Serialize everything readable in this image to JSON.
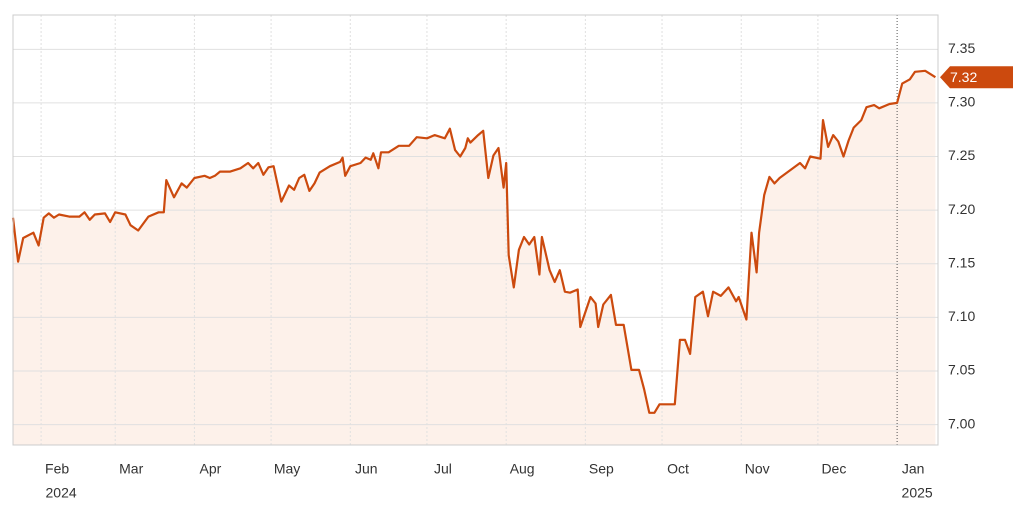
{
  "chart_data": {
    "type": "line",
    "color": "#cc4a0e",
    "fill": "#fdf1ea",
    "x": [
      21,
      23,
      25,
      29,
      31,
      33,
      35,
      37,
      39,
      43,
      47,
      49,
      51,
      53,
      57,
      59,
      61,
      65,
      67,
      70,
      74,
      78,
      80,
      81,
      84,
      87,
      89,
      92,
      96,
      98,
      100,
      102,
      106,
      110,
      113,
      115,
      117,
      119,
      121,
      123,
      126,
      129,
      131,
      133,
      135,
      137,
      139,
      141,
      145,
      149,
      150,
      151,
      153,
      157,
      159,
      161,
      162,
      164,
      165,
      168,
      172,
      176,
      179,
      183,
      186,
      190,
      192,
      194,
      196,
      198,
      199,
      200,
      203,
      205,
      207,
      209,
      211,
      213,
      214,
      215,
      217,
      219,
      221,
      223,
      225,
      227,
      228,
      231,
      233,
      235,
      237,
      239,
      242,
      243,
      247,
      249,
      250,
      252,
      255,
      257,
      260,
      263,
      266,
      268,
      270,
      272,
      274,
      280,
      282,
      284,
      286,
      288,
      291,
      293,
      295,
      298,
      301,
      304,
      305,
      308,
      310,
      312,
      313,
      315,
      317,
      319,
      321,
      325,
      329,
      331,
      333,
      337,
      338,
      340,
      342,
      344,
      346,
      348,
      350,
      353,
      355,
      358,
      360,
      364,
      367,
      369,
      372,
      374,
      378,
      382
    ],
    "values": [
      7.193,
      7.152,
      7.174,
      7.179,
      7.167,
      7.193,
      7.197,
      7.193,
      7.196,
      7.194,
      7.194,
      7.198,
      7.191,
      7.196,
      7.197,
      7.189,
      7.198,
      7.196,
      7.186,
      7.181,
      7.194,
      7.198,
      7.198,
      7.228,
      7.212,
      7.225,
      7.221,
      7.23,
      7.232,
      7.23,
      7.232,
      7.236,
      7.236,
      7.239,
      7.244,
      7.239,
      7.244,
      7.233,
      7.24,
      7.241,
      7.208,
      7.223,
      7.219,
      7.23,
      7.233,
      7.218,
      7.225,
      7.235,
      7.241,
      7.245,
      7.249,
      7.232,
      7.241,
      7.244,
      7.249,
      7.247,
      7.253,
      7.239,
      7.254,
      7.254,
      7.26,
      7.26,
      7.268,
      7.267,
      7.27,
      7.267,
      7.276,
      7.256,
      7.25,
      7.258,
      7.267,
      7.263,
      7.27,
      7.274,
      7.23,
      7.251,
      7.258,
      7.221,
      7.244,
      7.158,
      7.128,
      7.163,
      7.175,
      7.168,
      7.175,
      7.14,
      7.175,
      7.144,
      7.133,
      7.144,
      7.124,
      7.123,
      7.126,
      7.091,
      7.119,
      7.113,
      7.091,
      7.112,
      7.121,
      7.093,
      7.093,
      7.051,
      7.051,
      7.033,
      7.011,
      7.011,
      7.019,
      7.019,
      7.079,
      7.079,
      7.066,
      7.119,
      7.124,
      7.101,
      7.124,
      7.12,
      7.128,
      7.115,
      7.119,
      7.098,
      7.179,
      7.142,
      7.179,
      7.214,
      7.231,
      7.225,
      7.23,
      7.237,
      7.244,
      7.239,
      7.25,
      7.248,
      7.284,
      7.259,
      7.27,
      7.264,
      7.25,
      7.265,
      7.277,
      7.284,
      7.296,
      7.298,
      7.295,
      7.299,
      7.3,
      7.318,
      7.322,
      7.329,
      7.33,
      7.324
    ],
    "last_value_label": "7.32",
    "xlim": [
      21,
      383
    ],
    "xticks": [
      {
        "value": 32,
        "label": "Feb"
      },
      {
        "value": 61,
        "label": "Mar"
      },
      {
        "value": 92,
        "label": "Apr"
      },
      {
        "value": 122,
        "label": "May"
      },
      {
        "value": 153,
        "label": "Jun"
      },
      {
        "value": 183,
        "label": "Jul"
      },
      {
        "value": 214,
        "label": "Aug"
      },
      {
        "value": 245,
        "label": "Sep"
      },
      {
        "value": 275,
        "label": "Oct"
      },
      {
        "value": 306,
        "label": "Nov"
      },
      {
        "value": 336,
        "label": "Dec"
      },
      {
        "value": 367,
        "label": "Jan"
      }
    ],
    "x_year_labels": [
      {
        "value": 32,
        "label": "2024"
      },
      {
        "value": 367,
        "label": "2025"
      }
    ],
    "ylim": [
      6.981,
      7.382
    ],
    "yticks": [
      {
        "value": 7,
        "label": "7.00"
      },
      7.05,
      {
        "value": 7.1,
        "label": "7.10"
      },
      7.15,
      {
        "value": 7.2,
        "label": "7.20"
      },
      7.25,
      {
        "value": 7.3,
        "label": "7.30"
      },
      7.35
    ],
    "grid": true
  }
}
